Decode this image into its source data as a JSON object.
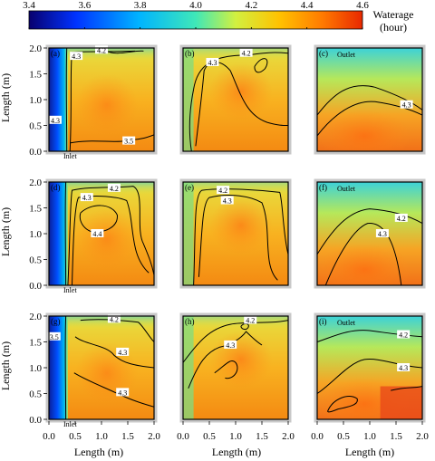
{
  "colorbar": {
    "min": 3.4,
    "max": 4.6,
    "ticks": [
      "3.4",
      "3.6",
      "3.8",
      "4.0",
      "4.2",
      "4.4",
      "4.6"
    ],
    "title_line1": "Waterage",
    "title_line2": "(hour)",
    "colors": [
      "#08006e",
      "#0032ff",
      "#00b4ff",
      "#3fe8b8",
      "#d2f040",
      "#ffc200",
      "#ff7a00",
      "#e82800"
    ]
  },
  "axes": {
    "xlabel": "Length (m)",
    "ylabel": "Length (m)",
    "xticks": [
      "0.0",
      "0.5",
      "1.0",
      "1.5",
      "2.0"
    ],
    "yticks": [
      "0.0",
      "0.5",
      "1.0",
      "1.5",
      "2.0"
    ]
  },
  "chart_data": {
    "type": "heatmap",
    "x_range": [
      0,
      2
    ],
    "y_range": [
      0,
      2
    ],
    "panels": [
      {
        "label": "(a)",
        "inlet": "Inlet",
        "outlet": "",
        "contours": [
          "4.3",
          "4.2",
          "3.5",
          "4.3"
        ]
      },
      {
        "label": "(b)",
        "inlet": "",
        "outlet": "",
        "contours": [
          "4.2",
          "4.3"
        ]
      },
      {
        "label": "(c)",
        "inlet": "",
        "outlet": "Outlet",
        "contours": [
          "4.3"
        ]
      },
      {
        "label": "(d)",
        "inlet": "Inlet",
        "outlet": "",
        "contours": [
          "4.2",
          "4.3",
          "4.4",
          "4.3"
        ]
      },
      {
        "label": "(e)",
        "inlet": "",
        "outlet": "",
        "contours": [
          "4.2",
          "4.3"
        ]
      },
      {
        "label": "(f)",
        "inlet": "",
        "outlet": "Outlet",
        "contours": [
          "4.2",
          "4.3"
        ]
      },
      {
        "label": "(g)",
        "inlet": "Inlet",
        "outlet": "",
        "contours": [
          "4.2",
          "3.5",
          "4.3",
          "4.3"
        ]
      },
      {
        "label": "(h)",
        "inlet": "",
        "outlet": "",
        "contours": [
          "4.2",
          "4.3"
        ]
      },
      {
        "label": "(i)",
        "inlet": "",
        "outlet": "Outlet",
        "contours": [
          "4.2",
          "4.3"
        ]
      }
    ]
  }
}
